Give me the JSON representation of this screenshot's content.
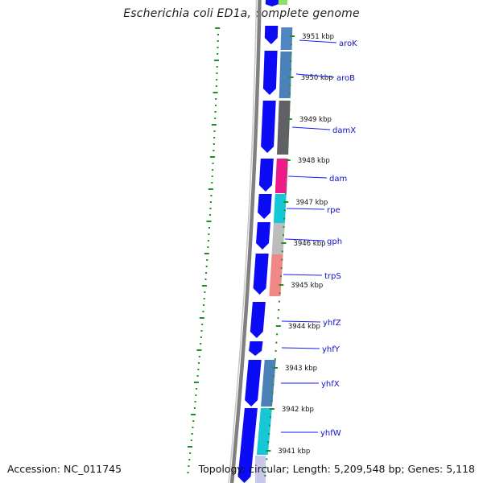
{
  "title": "Escherichia coli ED1a, complete genome",
  "footer": {
    "accession": "Accession: NC_011745",
    "topology": "Topology: circular; Length: 5,209,548 bp; Genes: 5,118"
  },
  "colors": {
    "forward_genes": "#0b0bf5",
    "backbone": "#808080",
    "gc_ticks": "#1f8f1f",
    "scale_ticks": "#1f8f1f",
    "gene_labels": "#1010c8",
    "kbp_labels": "#111111",
    "leader_lines": "#1a1aff"
  },
  "scale": [
    {
      "label": "3951 kbp"
    },
    {
      "label": "3950 kbp"
    },
    {
      "label": "3949 kbp"
    },
    {
      "label": "3948 kbp"
    },
    {
      "label": "3947 kbp"
    },
    {
      "label": "3946 kbp"
    },
    {
      "label": "3945 kbp"
    },
    {
      "label": "3944 kbp"
    },
    {
      "label": "3943 kbp"
    },
    {
      "label": "3942 kbp"
    },
    {
      "label": "3941 kbp"
    }
  ],
  "genes": [
    {
      "name": "aroK",
      "cog_color": "#4f87c2"
    },
    {
      "name": "aroB",
      "cog_color": "#4a82b8"
    },
    {
      "name": "damX",
      "cog_color": "#606066"
    },
    {
      "name": "dam",
      "cog_color": "#ee1a8c"
    },
    {
      "name": "rpe",
      "cog_color": "#16c8d6"
    },
    {
      "name": "gph",
      "cog_color": "#bcbcbc"
    },
    {
      "name": "trpS",
      "cog_color": "#f08888"
    },
    {
      "name": "yhfZ",
      "cog_color": ""
    },
    {
      "name": "yhfY",
      "cog_color": ""
    },
    {
      "name": "yhfX",
      "cog_color": "#4a82b8"
    },
    {
      "name": "yhfW",
      "cog_color": "#16c8d6"
    }
  ]
}
